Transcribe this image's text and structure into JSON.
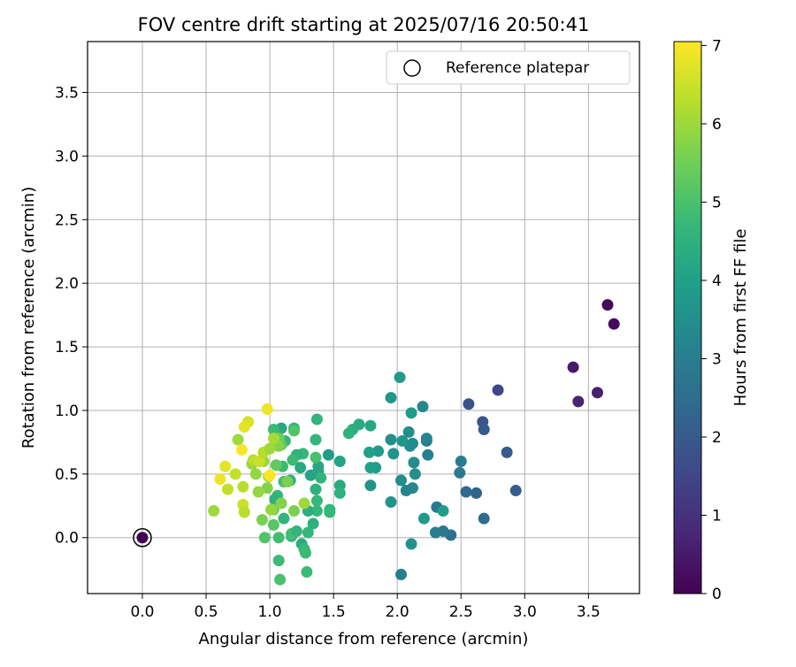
{
  "chart_data": {
    "type": "scatter",
    "title": "FOV centre drift starting at 2025/07/16 20:50:41",
    "xlabel": "Angular distance from reference (arcmin)",
    "ylabel": "Rotation from reference (arcmin)",
    "xlim": [
      -0.43,
      3.9
    ],
    "ylim": [
      -0.44,
      3.9
    ],
    "x_ticks": [
      0.0,
      0.5,
      1.0,
      1.5,
      2.0,
      2.5,
      3.0,
      3.5
    ],
    "x_tick_labels": [
      "0.0",
      "0.5",
      "1.0",
      "1.5",
      "2.0",
      "2.5",
      "3.0",
      "3.5"
    ],
    "y_ticks": [
      0.0,
      0.5,
      1.0,
      1.5,
      2.0,
      2.5,
      3.0,
      3.5
    ],
    "y_tick_labels": [
      "0.0",
      "0.5",
      "1.0",
      "1.5",
      "2.0",
      "2.5",
      "3.0",
      "3.5"
    ],
    "grid": true,
    "legend_position": "top-right",
    "legend": [
      {
        "label": "Reference platepar",
        "marker": "hollow-circle"
      }
    ],
    "reference_point": {
      "x": 0.0,
      "y": 0.0
    },
    "colorbar": {
      "label": "Hours from first FF file",
      "min": 0,
      "max": 7.05,
      "ticks": [
        0,
        1,
        2,
        3,
        4,
        5,
        6,
        7
      ],
      "tick_labels": [
        "0",
        "1",
        "2",
        "3",
        "4",
        "5",
        "6",
        "7"
      ],
      "colormap": "viridis",
      "colormap_stops": [
        "#440154",
        "#482878",
        "#3e4989",
        "#31688e",
        "#26828e",
        "#1f9e89",
        "#35b779",
        "#6ece58",
        "#b5de2b",
        "#fde725"
      ]
    },
    "series": [
      {
        "points": [
          [
            0.0,
            0.0,
            0.0
          ],
          [
            3.65,
            1.83,
            0.15
          ],
          [
            3.7,
            1.68,
            0.2
          ],
          [
            3.38,
            1.34,
            0.5
          ],
          [
            3.57,
            1.14,
            0.6
          ],
          [
            3.42,
            1.07,
            0.7
          ],
          [
            2.79,
            1.16,
            1.5
          ],
          [
            2.56,
            1.05,
            1.8
          ],
          [
            2.67,
            0.91,
            1.9
          ],
          [
            2.68,
            0.85,
            2.0
          ],
          [
            2.86,
            0.67,
            2.0
          ],
          [
            2.93,
            0.37,
            2.1
          ],
          [
            2.62,
            0.35,
            2.2
          ],
          [
            2.54,
            0.36,
            2.4
          ],
          [
            2.68,
            0.15,
            2.5
          ],
          [
            2.42,
            0.02,
            2.6
          ],
          [
            2.36,
            0.05,
            2.8
          ],
          [
            2.3,
            0.04,
            3.0
          ],
          [
            2.31,
            0.24,
            2.9
          ],
          [
            2.49,
            0.51,
            2.9
          ],
          [
            2.5,
            0.6,
            3.0
          ],
          [
            2.23,
            0.76,
            3.0
          ],
          [
            2.23,
            0.78,
            3.2
          ],
          [
            2.24,
            0.65,
            3.1
          ],
          [
            2.2,
            1.03,
            3.3
          ],
          [
            2.12,
            0.74,
            3.3
          ],
          [
            2.13,
            0.59,
            3.4
          ],
          [
            2.1,
            0.72,
            3.4
          ],
          [
            2.14,
            0.5,
            3.5
          ],
          [
            2.12,
            0.39,
            3.3
          ],
          [
            2.09,
            0.83,
            3.5
          ],
          [
            2.07,
            0.37,
            3.2
          ],
          [
            2.03,
            0.45,
            3.4
          ],
          [
            2.03,
            -0.29,
            3.0
          ],
          [
            2.11,
            -0.05,
            3.6
          ],
          [
            2.21,
            0.15,
            3.8
          ],
          [
            2.36,
            0.21,
            3.9
          ],
          [
            1.95,
            0.77,
            3.5
          ],
          [
            1.97,
            0.66,
            3.6
          ],
          [
            2.04,
            0.76,
            3.7
          ],
          [
            1.95,
            0.28,
            3.6
          ],
          [
            1.95,
            1.1,
            3.7
          ],
          [
            2.02,
            1.26,
            3.8
          ],
          [
            2.11,
            0.98,
            3.9
          ],
          [
            1.85,
            0.68,
            3.8
          ],
          [
            1.83,
            0.55,
            3.9
          ],
          [
            1.79,
            0.41,
            3.6
          ],
          [
            1.78,
            0.67,
            4.0
          ],
          [
            1.79,
            0.55,
            4.0
          ],
          [
            1.79,
            0.88,
            4.2
          ],
          [
            1.7,
            0.89,
            4.3
          ],
          [
            1.65,
            0.85,
            4.4
          ],
          [
            1.62,
            0.82,
            4.5
          ],
          [
            1.46,
            0.65,
            3.9
          ],
          [
            1.55,
            0.6,
            4.1
          ],
          [
            1.55,
            0.41,
            4.3
          ],
          [
            1.55,
            0.35,
            4.5
          ],
          [
            1.47,
            0.22,
            4.7
          ],
          [
            1.47,
            0.2,
            4.7
          ],
          [
            1.38,
            0.52,
            4.0
          ],
          [
            1.38,
            0.56,
            4.2
          ],
          [
            1.36,
            0.77,
            4.6
          ],
          [
            1.37,
            0.93,
            4.6
          ],
          [
            1.36,
            0.38,
            4.5
          ],
          [
            1.36,
            0.63,
            5.0
          ],
          [
            1.4,
            0.47,
            4.6
          ],
          [
            1.37,
            0.29,
            4.7
          ],
          [
            1.37,
            0.21,
            4.7
          ],
          [
            1.34,
            0.11,
            4.5
          ],
          [
            1.3,
            0.21,
            4.4
          ],
          [
            1.3,
            0.04,
            4.7
          ],
          [
            1.29,
            -0.27,
            4.8
          ],
          [
            1.25,
            -0.05,
            4.4
          ],
          [
            1.27,
            -0.09,
            4.7
          ],
          [
            1.28,
            -0.12,
            4.8
          ],
          [
            1.32,
            0.49,
            4.1
          ],
          [
            1.24,
            0.55,
            4.3
          ],
          [
            1.26,
            0.66,
            4.7
          ],
          [
            1.21,
            0.65,
            4.5
          ],
          [
            1.19,
            0.86,
            4.5
          ],
          [
            1.19,
            0.84,
            5.1
          ],
          [
            1.16,
            0.45,
            4.3
          ],
          [
            1.1,
            0.56,
            4.8
          ],
          [
            1.18,
            0.61,
            4.8
          ],
          [
            1.09,
            0.86,
            4.2
          ],
          [
            1.06,
            0.82,
            4.4
          ],
          [
            1.03,
            0.85,
            4.8
          ],
          [
            1.12,
            0.76,
            4.7
          ],
          [
            1.09,
            0.73,
            5.2
          ],
          [
            1.07,
            0.78,
            5.5
          ],
          [
            1.07,
            0.72,
            5.7
          ],
          [
            1.03,
            0.78,
            6.1
          ],
          [
            1.05,
            0.57,
            5.3
          ],
          [
            1.11,
            0.44,
            4.9
          ],
          [
            1.14,
            0.44,
            5.6
          ],
          [
            1.06,
            0.33,
            4.7
          ],
          [
            1.04,
            0.3,
            4.5
          ],
          [
            1.03,
            0.1,
            5.2
          ],
          [
            1.03,
            0.22,
            5.5
          ],
          [
            1.01,
            0.22,
            5.9
          ],
          [
            1.09,
            0.27,
            5.7
          ],
          [
            1.11,
            0.15,
            4.6
          ],
          [
            1.07,
            -0.18,
            4.8
          ],
          [
            1.08,
            -0.33,
            5.0
          ],
          [
            1.07,
            0.0,
            4.9
          ],
          [
            1.17,
            0.01,
            4.7
          ],
          [
            1.17,
            0.03,
            4.9
          ],
          [
            1.21,
            0.05,
            4.6
          ],
          [
            1.19,
            0.21,
            5.6
          ],
          [
            1.27,
            0.27,
            6.0
          ],
          [
            0.96,
            0.0,
            5.1
          ],
          [
            0.94,
            0.14,
            5.6
          ],
          [
            0.98,
            0.39,
            5.7
          ],
          [
            0.91,
            0.36,
            5.9
          ],
          [
            0.89,
            0.5,
            5.9
          ],
          [
            0.95,
            0.6,
            5.9
          ],
          [
            0.86,
            0.58,
            5.9
          ],
          [
            0.87,
            0.61,
            6.3
          ],
          [
            0.92,
            0.6,
            6.5
          ],
          [
            0.99,
            0.48,
            6.2
          ],
          [
            0.95,
            0.67,
            6.3
          ],
          [
            1.0,
            0.7,
            6.0
          ],
          [
            0.98,
            1.01,
            6.9
          ],
          [
            1.0,
            0.49,
            7.0
          ],
          [
            0.83,
            0.91,
            6.6
          ],
          [
            0.8,
            0.87,
            6.8
          ],
          [
            0.75,
            0.77,
            6.0
          ],
          [
            0.78,
            0.69,
            7.0
          ],
          [
            0.73,
            0.5,
            6.4
          ],
          [
            0.79,
            0.4,
            6.3
          ],
          [
            0.79,
            0.26,
            6.5
          ],
          [
            0.8,
            0.2,
            6.3
          ],
          [
            0.67,
            0.38,
            6.4
          ],
          [
            0.65,
            0.56,
            6.8
          ],
          [
            0.61,
            0.46,
            6.9
          ],
          [
            0.56,
            0.21,
            6.0
          ]
        ]
      }
    ]
  }
}
